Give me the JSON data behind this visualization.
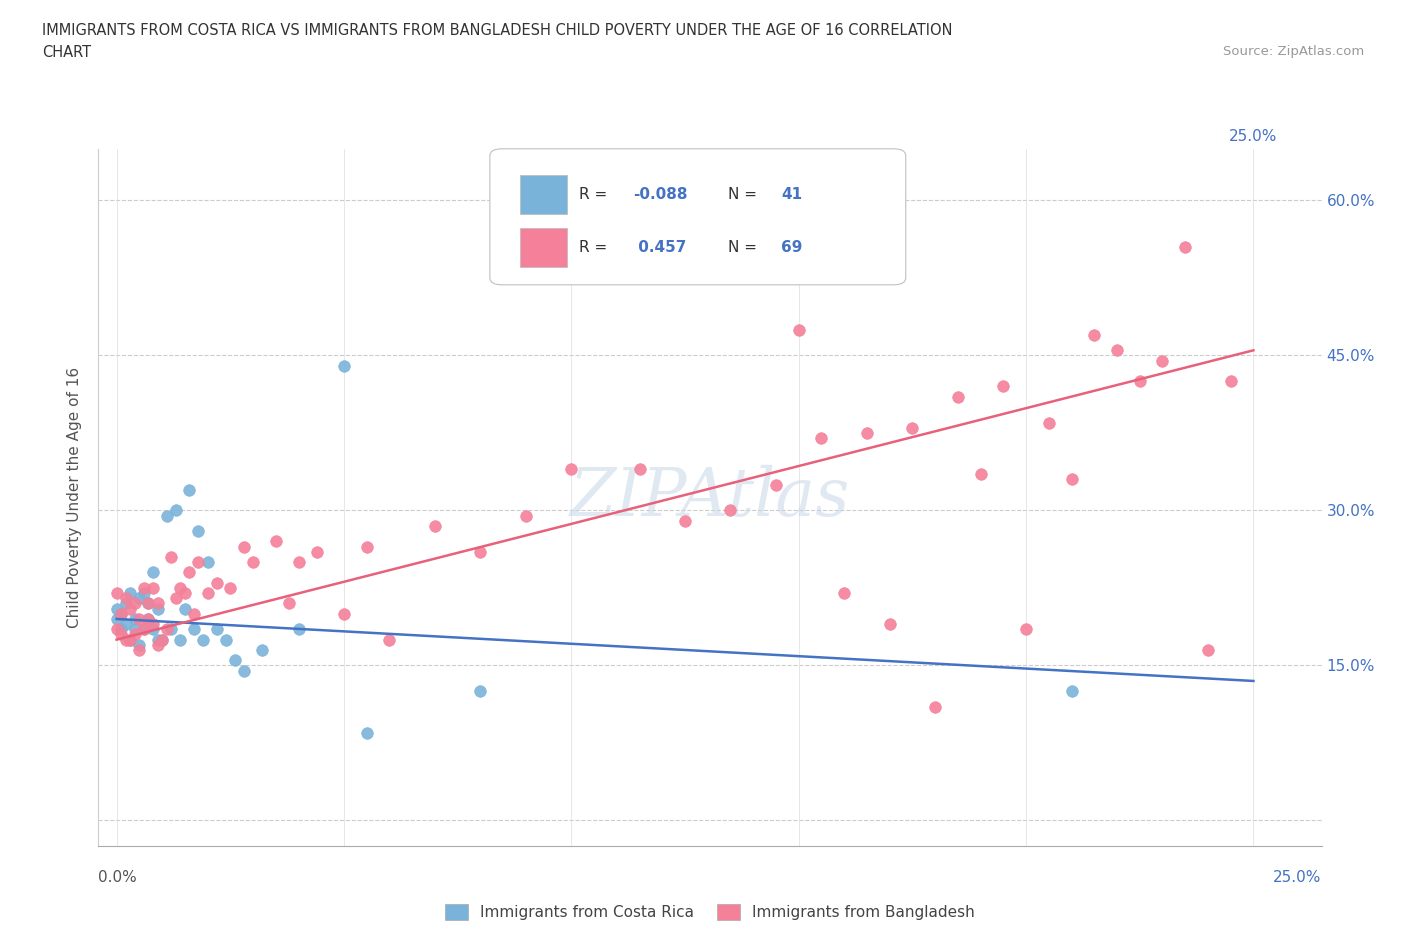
{
  "title_line1": "IMMIGRANTS FROM COSTA RICA VS IMMIGRANTS FROM BANGLADESH CHILD POVERTY UNDER THE AGE OF 16 CORRELATION",
  "title_line2": "CHART",
  "source": "Source: ZipAtlas.com",
  "ylabel": "Child Poverty Under the Age of 16",
  "watermark": "ZIPAtlas",
  "costa_rica_R": "-0.088",
  "costa_rica_N": "41",
  "bangladesh_R": "0.457",
  "bangladesh_N": "69",
  "costa_rica_label": "Immigrants from Costa Rica",
  "bangladesh_label": "Immigrants from Bangladesh",
  "x_ticks": [
    0.0,
    0.05,
    0.1,
    0.15,
    0.2,
    0.25
  ],
  "y_ticks": [
    0.0,
    0.15,
    0.3,
    0.45,
    0.6
  ],
  "xlim": [
    -0.004,
    0.265
  ],
  "ylim": [
    -0.025,
    0.65
  ],
  "costa_rica_color": "#7ab3d9",
  "bangladesh_color": "#f48099",
  "costa_rica_line_color": "#4472c4",
  "bangladesh_line_color": "#e8607a",
  "right_axis_color": "#4472c4",
  "costa_rica_scatter_x": [
    0.0,
    0.0,
    0.001,
    0.001,
    0.002,
    0.002,
    0.003,
    0.003,
    0.004,
    0.004,
    0.005,
    0.005,
    0.006,
    0.006,
    0.007,
    0.007,
    0.008,
    0.008,
    0.009,
    0.009,
    0.01,
    0.011,
    0.012,
    0.013,
    0.014,
    0.015,
    0.016,
    0.017,
    0.018,
    0.019,
    0.02,
    0.022,
    0.024,
    0.026,
    0.028,
    0.032,
    0.04,
    0.05,
    0.055,
    0.08,
    0.21
  ],
  "costa_rica_scatter_y": [
    0.195,
    0.205,
    0.185,
    0.2,
    0.19,
    0.21,
    0.175,
    0.22,
    0.185,
    0.195,
    0.17,
    0.215,
    0.185,
    0.22,
    0.195,
    0.21,
    0.185,
    0.24,
    0.175,
    0.205,
    0.175,
    0.295,
    0.185,
    0.3,
    0.175,
    0.205,
    0.32,
    0.185,
    0.28,
    0.175,
    0.25,
    0.185,
    0.175,
    0.155,
    0.145,
    0.165,
    0.185,
    0.44,
    0.085,
    0.125,
    0.125
  ],
  "bangladesh_scatter_x": [
    0.0,
    0.0,
    0.001,
    0.001,
    0.002,
    0.002,
    0.003,
    0.003,
    0.004,
    0.004,
    0.005,
    0.005,
    0.006,
    0.006,
    0.007,
    0.007,
    0.008,
    0.008,
    0.009,
    0.009,
    0.01,
    0.011,
    0.012,
    0.013,
    0.014,
    0.015,
    0.016,
    0.017,
    0.018,
    0.02,
    0.022,
    0.025,
    0.028,
    0.03,
    0.035,
    0.038,
    0.04,
    0.044,
    0.05,
    0.055,
    0.06,
    0.07,
    0.08,
    0.09,
    0.1,
    0.115,
    0.125,
    0.135,
    0.145,
    0.155,
    0.165,
    0.175,
    0.185,
    0.195,
    0.205,
    0.215,
    0.225,
    0.235,
    0.245,
    0.15,
    0.16,
    0.17,
    0.18,
    0.19,
    0.2,
    0.21,
    0.22,
    0.23,
    0.24
  ],
  "bangladesh_scatter_y": [
    0.185,
    0.22,
    0.18,
    0.2,
    0.175,
    0.215,
    0.175,
    0.205,
    0.18,
    0.21,
    0.165,
    0.195,
    0.185,
    0.225,
    0.21,
    0.195,
    0.19,
    0.225,
    0.17,
    0.21,
    0.175,
    0.185,
    0.255,
    0.215,
    0.225,
    0.22,
    0.24,
    0.2,
    0.25,
    0.22,
    0.23,
    0.225,
    0.265,
    0.25,
    0.27,
    0.21,
    0.25,
    0.26,
    0.2,
    0.265,
    0.175,
    0.285,
    0.26,
    0.295,
    0.34,
    0.34,
    0.29,
    0.3,
    0.325,
    0.37,
    0.375,
    0.38,
    0.41,
    0.42,
    0.385,
    0.47,
    0.425,
    0.555,
    0.425,
    0.475,
    0.22,
    0.19,
    0.11,
    0.335,
    0.185,
    0.33,
    0.455,
    0.445,
    0.165
  ],
  "costa_rica_trend_x": [
    0.0,
    0.25
  ],
  "costa_rica_trend_y": [
    0.195,
    0.135
  ],
  "bangladesh_trend_x": [
    0.0,
    0.25
  ],
  "bangladesh_trend_y": [
    0.175,
    0.455
  ]
}
